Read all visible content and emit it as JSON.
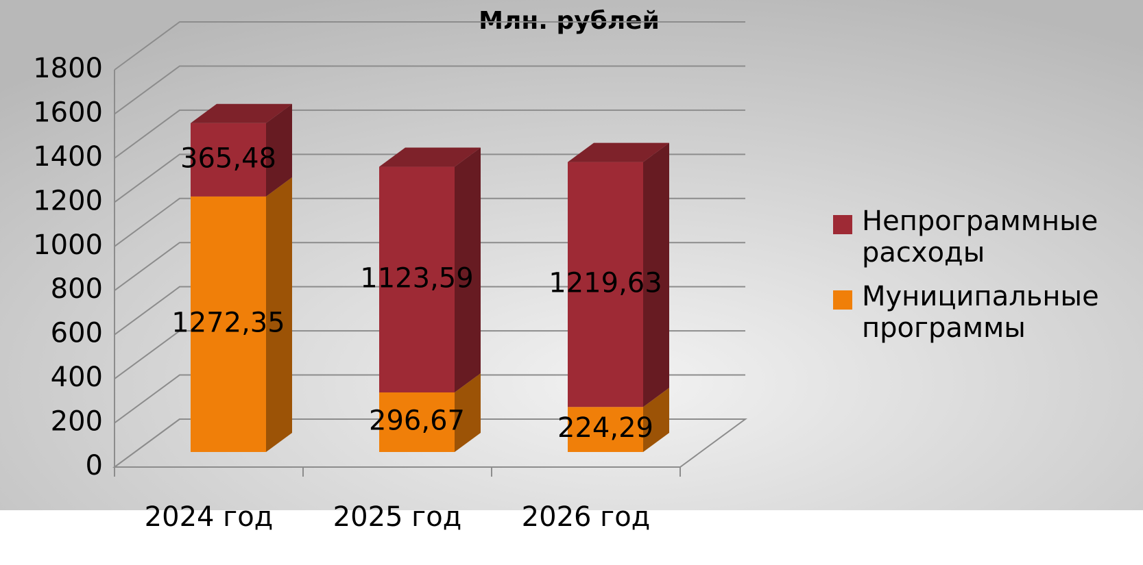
{
  "chart_data": {
    "type": "bar3d_stacked",
    "title": "Млн. рублей",
    "categories": [
      "2024 год",
      "2025 год",
      "2026 год"
    ],
    "series": [
      {
        "name": "Муниципальные программы",
        "color": "#f07f09",
        "values": [
          1272.35,
          296.67,
          224.29
        ],
        "value_labels": [
          "1272,35",
          "296,67",
          "224,29"
        ]
      },
      {
        "name": "Непрограммные расходы",
        "color": "#9e2a35",
        "values": [
          365.48,
          1123.59,
          1219.63
        ],
        "value_labels": [
          "365,48",
          "1123,59",
          "1219,63"
        ]
      }
    ],
    "ylim": [
      0,
      1800
    ],
    "yticks": [
      0,
      200,
      400,
      600,
      800,
      1000,
      1200,
      1400,
      1600,
      1800
    ],
    "grid": true,
    "legend": "right"
  }
}
